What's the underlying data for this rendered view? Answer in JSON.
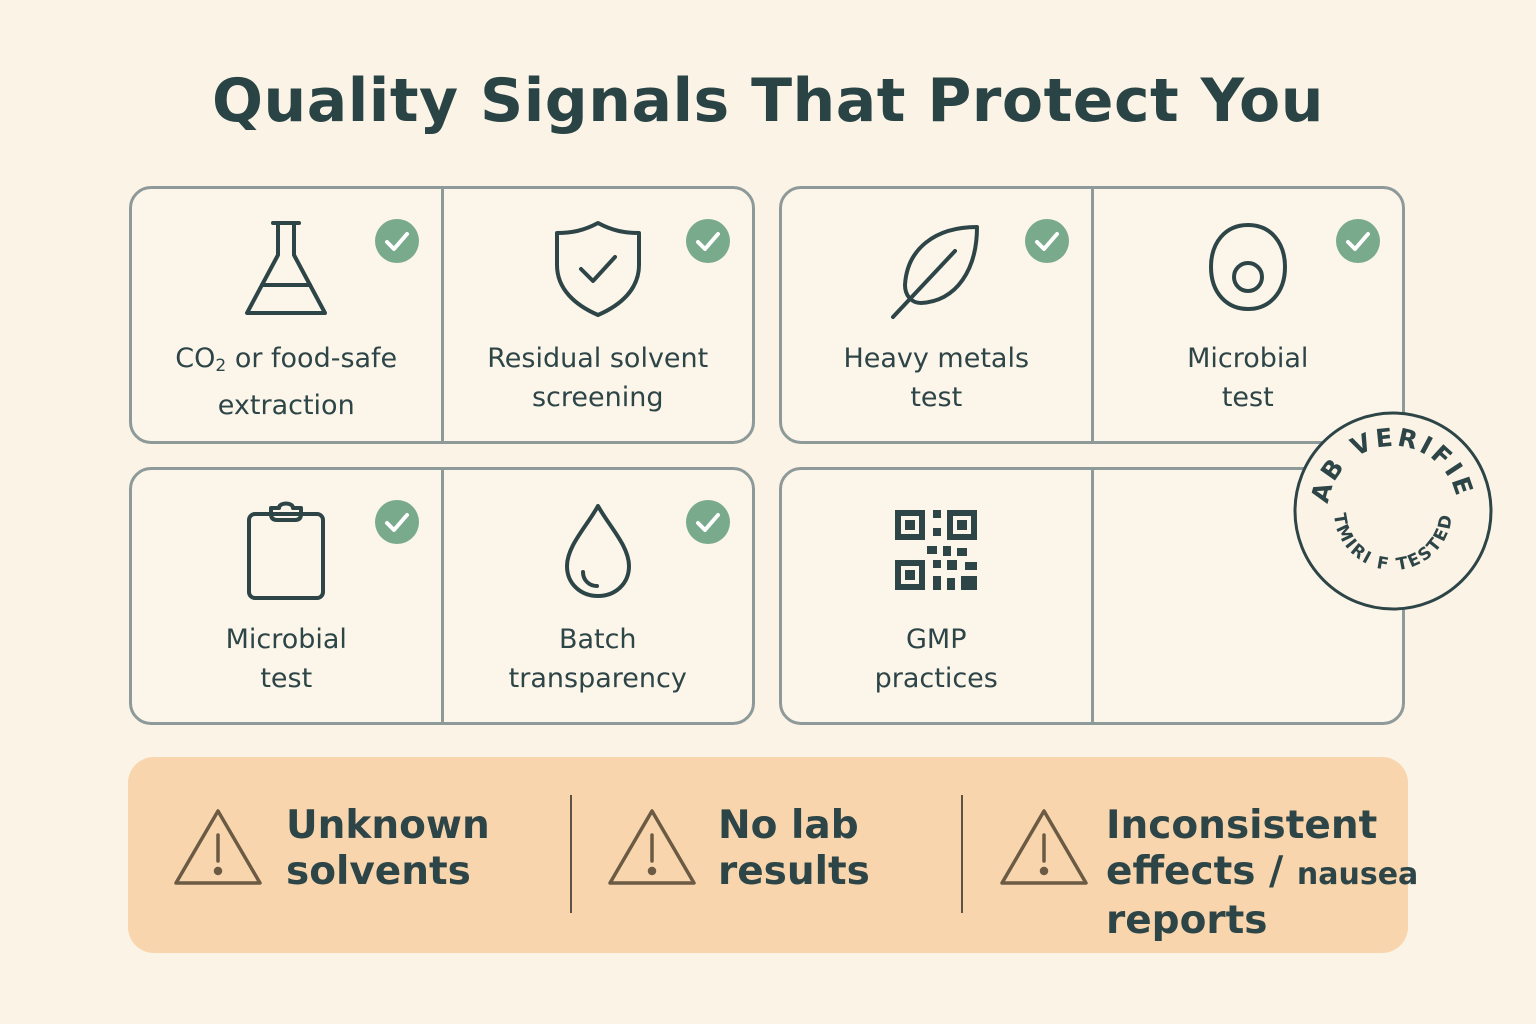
{
  "title": "Quality Signals That Protect You",
  "check_color": "#79aa8b",
  "cards": [
    {
      "icon": "flask-icon",
      "label_parts": [
        "CO",
        "2",
        " or food-safe"
      ],
      "label_line2": "extraction",
      "checked": true
    },
    {
      "icon": "shield-check-icon",
      "label_line1": "Residual solvent",
      "label_line2": "screening",
      "checked": true
    },
    {
      "icon": "leaf-icon",
      "label_line1": "Heavy metals",
      "label_line2": "test",
      "checked": true
    },
    {
      "icon": "microbe-icon",
      "label_line1": "Microbial",
      "label_line2": "test",
      "checked": true
    },
    {
      "icon": "clipboard-icon",
      "label_line1": "Microbial",
      "label_line2": "test",
      "checked": true
    },
    {
      "icon": "droplet-icon",
      "label_line1": "Batch",
      "label_line2": "transparency",
      "checked": true
    },
    {
      "icon": "qr-code-icon",
      "label_line1": "GMP",
      "label_line2": "practices",
      "checked": false
    }
  ],
  "stamp": {
    "top_text": "LAB VERIFIED",
    "bottom_text": "TMIRI F TESTED"
  },
  "warnings": [
    {
      "icon": "warning-icon",
      "line1": "Unknown",
      "line2": "solvents"
    },
    {
      "icon": "warning-icon",
      "line1": "No lab",
      "line2": "results"
    },
    {
      "icon": "warning-icon",
      "line1": "Inconsistent",
      "line2_a": "effects / ",
      "line2_b": "nausea",
      "line3": "reports"
    }
  ]
}
